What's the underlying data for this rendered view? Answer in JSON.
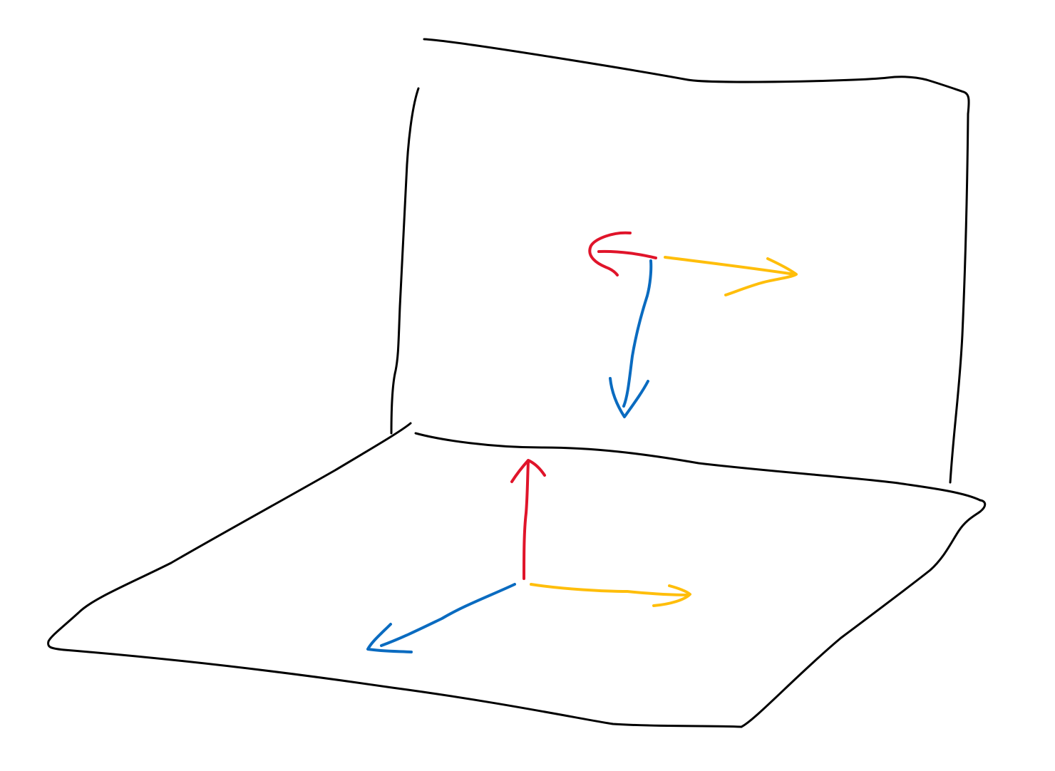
{
  "diagram": {
    "colors": {
      "outline": "#000000",
      "axis_red": "#e0142a",
      "axis_yellow": "#ffbe0b",
      "axis_blue": "#0a6bc0",
      "background": "#ffffff"
    },
    "planes": [
      {
        "name": "vertical-wall",
        "orientation": "vertical"
      },
      {
        "name": "floor",
        "orientation": "horizontal"
      }
    ],
    "frames": [
      {
        "name": "wall-frame",
        "axes": [
          {
            "color": "red",
            "direction": "left (curled)"
          },
          {
            "color": "yellow",
            "direction": "right"
          },
          {
            "color": "blue",
            "direction": "down"
          }
        ]
      },
      {
        "name": "floor-frame",
        "axes": [
          {
            "color": "red",
            "direction": "up"
          },
          {
            "color": "yellow",
            "direction": "right"
          },
          {
            "color": "blue",
            "direction": "down-left"
          }
        ]
      }
    ]
  }
}
